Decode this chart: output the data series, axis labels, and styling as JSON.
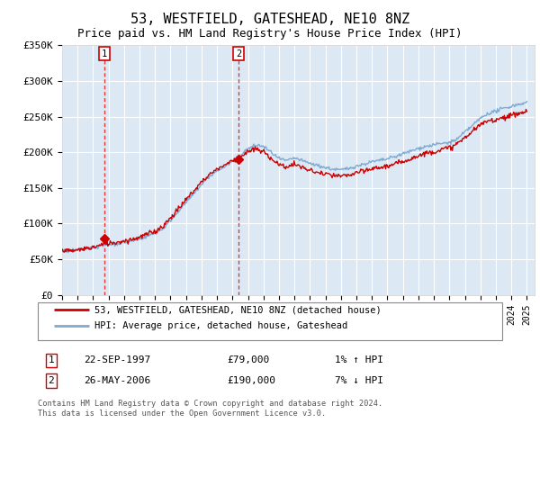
{
  "title": "53, WESTFIELD, GATESHEAD, NE10 8NZ",
  "subtitle": "Price paid vs. HM Land Registry's House Price Index (HPI)",
  "title_fontsize": 11,
  "subtitle_fontsize": 9,
  "background_color": "#ffffff",
  "plot_bg_color": "#dce9f5",
  "grid_color": "#ffffff",
  "ylim": [
    0,
    350000
  ],
  "yticks": [
    0,
    50000,
    100000,
    150000,
    200000,
    250000,
    300000,
    350000
  ],
  "ytick_labels": [
    "£0",
    "£50K",
    "£100K",
    "£150K",
    "£200K",
    "£250K",
    "£300K",
    "£350K"
  ],
  "xlim_start": 1995.0,
  "xlim_end": 2025.5,
  "sale1_x": 1997.72,
  "sale1_y": 79000,
  "sale1_label": "1",
  "sale1_date": "22-SEP-1997",
  "sale1_price": "£79,000",
  "sale1_hpi": "1% ↑ HPI",
  "sale2_x": 2006.38,
  "sale2_y": 190000,
  "sale2_label": "2",
  "sale2_date": "26-MAY-2006",
  "sale2_price": "£190,000",
  "sale2_hpi": "7% ↓ HPI",
  "property_line_color": "#cc0000",
  "hpi_line_color": "#80aad0",
  "vline_color": "#ee3333",
  "marker_color": "#cc0000",
  "legend_property": "53, WESTFIELD, GATESHEAD, NE10 8NZ (detached house)",
  "legend_hpi": "HPI: Average price, detached house, Gateshead",
  "footer1": "Contains HM Land Registry data © Crown copyright and database right 2024.",
  "footer2": "This data is licensed under the Open Government Licence v3.0."
}
